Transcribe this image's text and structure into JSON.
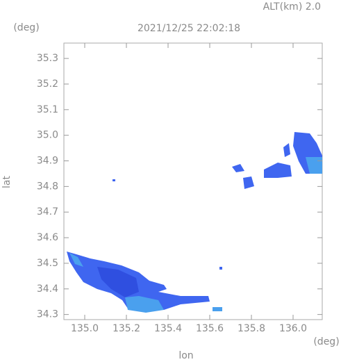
{
  "chart_data": {
    "type": "radar-map",
    "altitude_label": "ALT(km) 2.0",
    "title": "2021/12/25 22:02:18",
    "y_unit": "(deg)",
    "x_unit": "(deg)",
    "ylabel": "lat",
    "xlabel": "lon",
    "xlim": [
      134.9,
      136.14
    ],
    "ylim": [
      34.28,
      35.36
    ],
    "xticks": [
      {
        "value": 135,
        "label": "135.0"
      },
      135.2,
      135.4,
      135.6,
      135.8,
      {
        "value": 136,
        "label": "136.0"
      }
    ],
    "yticks": [
      34.3,
      34.4,
      34.5,
      34.6,
      34.7,
      34.8,
      34.9,
      {
        "value": 35,
        "label": "35.0"
      },
      35.1,
      35.2,
      35.3
    ]
  }
}
